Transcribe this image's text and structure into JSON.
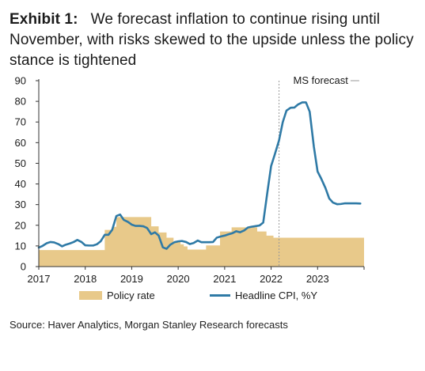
{
  "title": {
    "label": "Exhibit 1:",
    "text": "We forecast inflation to continue rising until November, with risks skewed to the upside unless the policy stance is tightened"
  },
  "source": "Source: Haver Analytics, Morgan Stanley Research forecasts",
  "colors": {
    "policy_rate": "#e8c98a",
    "cpi": "#2f7aa6",
    "forecast_line": "#9a9a9a"
  },
  "chart_data": {
    "type": "area",
    "xlim": [
      2017,
      2024
    ],
    "ylim": [
      0,
      90
    ],
    "x_ticks": [
      "2017",
      "2018",
      "2019",
      "2020",
      "2021",
      "2022",
      "2023"
    ],
    "y_ticks": [
      "0",
      "10",
      "20",
      "30",
      "40",
      "50",
      "60",
      "70",
      "80",
      "90"
    ],
    "forecast_start": 2022.17,
    "annotations": [
      {
        "text": "MS forecast",
        "x": 2022.17
      }
    ],
    "series": [
      {
        "name": "Policy rate",
        "kind": "area",
        "points": [
          [
            2017.0,
            8
          ],
          [
            2018.0,
            8
          ],
          [
            2018.42,
            8
          ],
          [
            2018.42,
            17.75
          ],
          [
            2018.58,
            17.75
          ],
          [
            2018.58,
            19.25
          ],
          [
            2018.67,
            19.25
          ],
          [
            2018.67,
            24
          ],
          [
            2019.42,
            24
          ],
          [
            2019.42,
            19.5
          ],
          [
            2019.58,
            19.5
          ],
          [
            2019.58,
            16.5
          ],
          [
            2019.75,
            16.5
          ],
          [
            2019.75,
            14
          ],
          [
            2019.9,
            14
          ],
          [
            2019.9,
            12
          ],
          [
            2020.05,
            12
          ],
          [
            2020.05,
            10.75
          ],
          [
            2020.12,
            10.75
          ],
          [
            2020.12,
            9.75
          ],
          [
            2020.2,
            9.75
          ],
          [
            2020.2,
            8.25
          ],
          [
            2020.6,
            8.25
          ],
          [
            2020.6,
            10.25
          ],
          [
            2020.9,
            10.25
          ],
          [
            2020.9,
            17
          ],
          [
            2021.15,
            17
          ],
          [
            2021.15,
            19
          ],
          [
            2021.7,
            19
          ],
          [
            2021.7,
            17
          ],
          [
            2021.9,
            17
          ],
          [
            2021.9,
            15
          ],
          [
            2022.05,
            15
          ],
          [
            2022.05,
            14
          ],
          [
            2024.0,
            14
          ]
        ]
      },
      {
        "name": "Headline CPI, %Y",
        "kind": "line",
        "points": [
          [
            2017.0,
            9.2
          ],
          [
            2017.08,
            10
          ],
          [
            2017.17,
            11.3
          ],
          [
            2017.25,
            11.9
          ],
          [
            2017.33,
            11.7
          ],
          [
            2017.42,
            10.9
          ],
          [
            2017.5,
            9.8
          ],
          [
            2017.58,
            10.6
          ],
          [
            2017.67,
            11.2
          ],
          [
            2017.75,
            11.9
          ],
          [
            2017.83,
            12.9
          ],
          [
            2017.92,
            11.9
          ],
          [
            2018.0,
            10.3
          ],
          [
            2018.08,
            10.2
          ],
          [
            2018.17,
            10.2
          ],
          [
            2018.25,
            10.8
          ],
          [
            2018.33,
            12.2
          ],
          [
            2018.42,
            15.4
          ],
          [
            2018.5,
            15.4
          ],
          [
            2018.58,
            17.8
          ],
          [
            2018.67,
            24.5
          ],
          [
            2018.75,
            25.2
          ],
          [
            2018.83,
            22.6
          ],
          [
            2018.92,
            21.6
          ],
          [
            2019.0,
            20.3
          ],
          [
            2019.08,
            19.7
          ],
          [
            2019.17,
            19.7
          ],
          [
            2019.25,
            19.5
          ],
          [
            2019.33,
            18.7
          ],
          [
            2019.42,
            15.7
          ],
          [
            2019.5,
            16.6
          ],
          [
            2019.58,
            15
          ],
          [
            2019.67,
            9.3
          ],
          [
            2019.75,
            8.6
          ],
          [
            2019.83,
            10.6
          ],
          [
            2019.92,
            11.8
          ],
          [
            2020.0,
            12.2
          ],
          [
            2020.08,
            12.4
          ],
          [
            2020.17,
            11.9
          ],
          [
            2020.25,
            10.9
          ],
          [
            2020.33,
            11.4
          ],
          [
            2020.42,
            12.6
          ],
          [
            2020.5,
            11.8
          ],
          [
            2020.58,
            11.8
          ],
          [
            2020.67,
            11.8
          ],
          [
            2020.75,
            11.9
          ],
          [
            2020.83,
            14
          ],
          [
            2020.92,
            14.6
          ],
          [
            2021.0,
            15
          ],
          [
            2021.08,
            15.6
          ],
          [
            2021.17,
            16.2
          ],
          [
            2021.25,
            17.1
          ],
          [
            2021.33,
            16.6
          ],
          [
            2021.42,
            17.5
          ],
          [
            2021.5,
            18.9
          ],
          [
            2021.58,
            19.3
          ],
          [
            2021.67,
            19.6
          ],
          [
            2021.75,
            19.9
          ],
          [
            2021.83,
            21.3
          ],
          [
            2021.92,
            36.1
          ],
          [
            2022.0,
            48.7
          ],
          [
            2022.08,
            54.4
          ],
          [
            2022.17,
            61.1
          ],
          [
            2022.25,
            69.9
          ],
          [
            2022.33,
            75.5
          ],
          [
            2022.42,
            76.9
          ],
          [
            2022.5,
            77
          ],
          [
            2022.58,
            78.5
          ],
          [
            2022.67,
            79.5
          ],
          [
            2022.75,
            79.5
          ],
          [
            2022.83,
            75
          ],
          [
            2022.92,
            58
          ],
          [
            2023.0,
            46
          ],
          [
            2023.08,
            42.5
          ],
          [
            2023.17,
            38
          ],
          [
            2023.25,
            33
          ],
          [
            2023.33,
            31
          ],
          [
            2023.42,
            30.2
          ],
          [
            2023.5,
            30.3
          ],
          [
            2023.58,
            30.6
          ],
          [
            2023.67,
            30.6
          ],
          [
            2023.75,
            30.6
          ],
          [
            2023.83,
            30.6
          ],
          [
            2023.92,
            30.5
          ]
        ]
      }
    ],
    "legend": [
      "Policy rate",
      "Headline CPI, %Y"
    ],
    "legend_position": "bottom"
  }
}
